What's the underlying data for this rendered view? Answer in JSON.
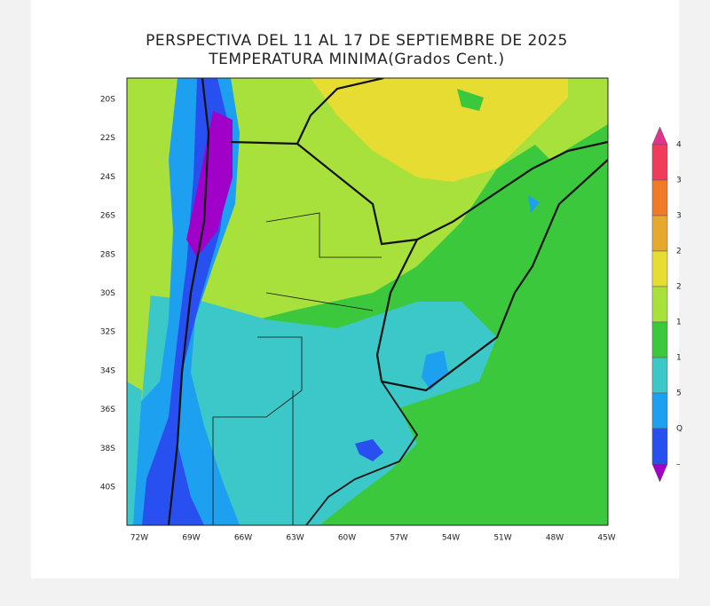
{
  "header": {
    "title": "PERSPECTIVA DEL 11 AL 17 DE SEPTIEMBRE DE 2025",
    "subtitle": "TEMPERATURA MINIMA(Grados Cent.)"
  },
  "map": {
    "lat_labels": [
      "20S",
      "22S",
      "24S",
      "26S",
      "28S",
      "30S",
      "32S",
      "34S",
      "36S",
      "38S",
      "40S"
    ],
    "lon_labels": [
      "72W",
      "69W",
      "66W",
      "63W",
      "60W",
      "57W",
      "54W",
      "51W",
      "48W",
      "45W"
    ]
  },
  "legend": {
    "labels": [
      "4",
      "3",
      "3",
      "2",
      "2",
      "1",
      "1",
      "5",
      "Q",
      "–"
    ],
    "colors": [
      "#e0348c",
      "#f03c5a",
      "#f07a28",
      "#e6a82d",
      "#e6dc32",
      "#a8e03c",
      "#3cc83c",
      "#3cc8c8",
      "#1ea0f0",
      "#2850f0",
      "#a000c8"
    ]
  }
}
